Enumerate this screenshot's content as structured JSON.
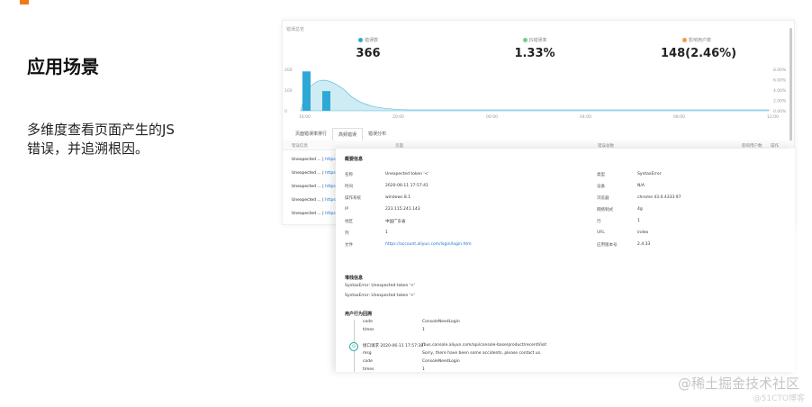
{
  "slide": {
    "title": "应用场景",
    "body": "多维度查看页面产生的JS错误，并追溯根因。"
  },
  "dashboard": {
    "section_label": "错误总览",
    "kpis": [
      {
        "label": "错误数",
        "value": "366",
        "color": "#2ea8d6"
      },
      {
        "label": "JS错误率",
        "value": "1.33%",
        "color": "#6fcf97"
      },
      {
        "label": "影响用户数",
        "value": "148(2.46%)",
        "color": "#f2994a"
      }
    ],
    "tabs": [
      "页面错误率排行",
      "高频错误",
      "错误分布"
    ],
    "table_headers": [
      "错误信息",
      "页面",
      "错误总数",
      "影响用户数",
      "操作"
    ],
    "rows": [
      {
        "msg": "Unexpected ...",
        "page": "https://accou"
      },
      {
        "msg": "Unexpected ...",
        "page": "https://accou"
      },
      {
        "msg": "Unexpected ...",
        "page": "https://accou"
      },
      {
        "msg": "Unexpected ...",
        "page": "https://accou"
      },
      {
        "msg": "Unexpected ...",
        "page": "https://accou"
      }
    ]
  },
  "chart_data": {
    "type": "bar",
    "categories": [
      "16:00",
      "20:00",
      "00:00",
      "04:00",
      "08:00",
      "12:00"
    ],
    "bar_values": [
      190,
      95,
      0,
      0,
      0,
      0
    ],
    "y_left_ticks": [
      "200",
      "100",
      "0"
    ],
    "y_right_ticks": [
      "8.00%",
      "6.00%",
      "4.00%",
      "2.00%",
      "0.00%"
    ],
    "series": [
      {
        "name": "错误数",
        "type": "bar",
        "color": "#2ea8d6"
      },
      {
        "name": "JS错误率",
        "type": "area",
        "color": "#9fd9ea"
      }
    ]
  },
  "detail": {
    "basic_title": "概要信息",
    "left_fields": [
      {
        "label": "名称",
        "value": "Unexpected token '<'"
      },
      {
        "label": "时间",
        "value": "2020-06-11 17:57:41"
      },
      {
        "label": "操作系统",
        "value": "windows 8.1"
      },
      {
        "label": "IP",
        "value": "223.115.241.143"
      },
      {
        "label": "地区",
        "value": "中国广东省"
      },
      {
        "label": "列",
        "value": "1"
      },
      {
        "label": "文件",
        "value": "https://account.aliyun.com/login/login.htm"
      }
    ],
    "right_fields": [
      {
        "label": "类型",
        "value": "SyntaxError"
      },
      {
        "label": "设备",
        "value": "N/A"
      },
      {
        "label": "浏览器",
        "value": "chrome 43.0.4333.97"
      },
      {
        "label": "网络制式",
        "value": "4g"
      },
      {
        "label": "行",
        "value": "1"
      },
      {
        "label": "URL",
        "value": "index"
      },
      {
        "label": "应用版本号",
        "value": "2.4.33"
      }
    ],
    "stack_title": "堆栈信息",
    "stack_lines": [
      "SyntaxError: Unexpected token '<'",
      "SyntaxError: Unexpected token '<'"
    ],
    "trace_title": "用户行为回溯",
    "trace": [
      {
        "k": "code",
        "v": "ConsoleNeedLogin"
      },
      {
        "k": "times",
        "v": "1"
      },
      {
        "k": "接口请求 2020-06-11 17:57:38",
        "v": "fbus.console.aliyun.com/api/console-base/product/recentVisit"
      },
      {
        "k": "msg",
        "v": "Sorry, there have been some accidents, please contact us."
      },
      {
        "k": "code",
        "v": "ConsoleNeedLogin"
      },
      {
        "k": "times",
        "v": "1"
      }
    ]
  },
  "watermark": "@稀土掘金技术社区",
  "watermark_sub": "@51CTO博客"
}
